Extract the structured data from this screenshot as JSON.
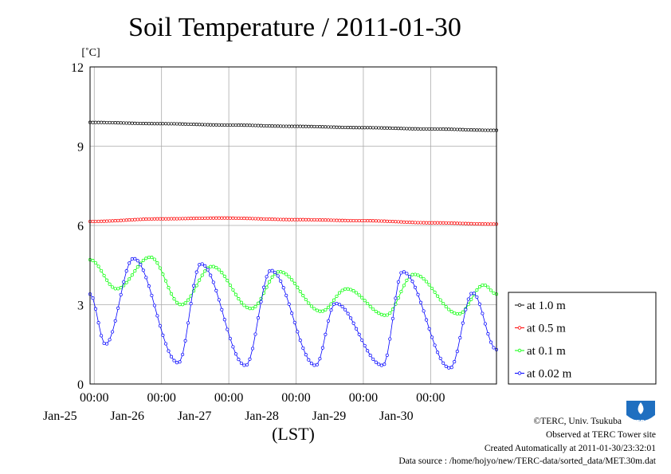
{
  "title": "Soil Temperature / 2011-01-30",
  "footer": {
    "copyright": "©TERC, Univ. Tsukuba",
    "site": "Observed at TERC Tower site",
    "created": "Created Automatically at 2011-01-30/23:32:01",
    "source": "Data source : /home/hojyo/new/TERC-data/sorted_data/MET.30m.dat"
  },
  "logo_text": "TERC",
  "chart_data": {
    "type": "line",
    "title": "Soil Temperature / 2011-01-30",
    "ylabel": "[˚C]",
    "xlabel": "(LST)",
    "ylim": [
      0,
      12
    ],
    "yticks": [
      "0",
      "3",
      "6",
      "9",
      "12"
    ],
    "xlim": [
      "2011-01-24 22:30",
      "2011-01-30 23:30"
    ],
    "xticks": [
      {
        "time": "00:00",
        "date": "Jan-25"
      },
      {
        "time": "00:00",
        "date": "Jan-26"
      },
      {
        "time": "00:00",
        "date": "Jan-27"
      },
      {
        "time": "00:00",
        "date": "Jan-28"
      },
      {
        "time": "00:00",
        "date": "Jan-29"
      },
      {
        "time": "00:00",
        "date": "Jan-30"
      }
    ],
    "grid": true,
    "legend": "outside-right",
    "x_unit_note": "values every 1 hour starting 2011-01-24 22:30; x listed for knots",
    "series": [
      {
        "name": "at 1.0 m",
        "color": "#000000",
        "points": [
          [
            "2011-01-24 22:30",
            9.9
          ],
          [
            "2011-01-26 00:00",
            9.85
          ],
          [
            "2011-01-27 00:00",
            9.8
          ],
          [
            "2011-01-28 00:00",
            9.75
          ],
          [
            "2011-01-29 00:00",
            9.7
          ],
          [
            "2011-01-30 00:00",
            9.65
          ],
          [
            "2011-01-30 23:30",
            9.6
          ]
        ]
      },
      {
        "name": "at 0.5 m",
        "color": "#ff0000",
        "points": [
          [
            "2011-01-24 22:30",
            6.15
          ],
          [
            "2011-01-26 00:00",
            6.25
          ],
          [
            "2011-01-26 22:00",
            6.28
          ],
          [
            "2011-01-28 00:00",
            6.22
          ],
          [
            "2011-01-29 00:00",
            6.18
          ],
          [
            "2011-01-30 00:00",
            6.1
          ],
          [
            "2011-01-30 23:30",
            6.05
          ]
        ]
      },
      {
        "name": "at 0.1 m",
        "color": "#00ff00",
        "points": [
          [
            "2011-01-24 22:30",
            4.7
          ],
          [
            "2011-01-25 08:00",
            3.6
          ],
          [
            "2011-01-25 20:00",
            4.8
          ],
          [
            "2011-01-26 07:00",
            3.0
          ],
          [
            "2011-01-26 18:00",
            4.45
          ],
          [
            "2011-01-27 08:00",
            2.85
          ],
          [
            "2011-01-27 18:00",
            4.25
          ],
          [
            "2011-01-28 09:00",
            2.75
          ],
          [
            "2011-01-28 18:00",
            3.6
          ],
          [
            "2011-01-29 08:00",
            2.6
          ],
          [
            "2011-01-29 18:00",
            4.15
          ],
          [
            "2011-01-30 10:00",
            2.65
          ],
          [
            "2011-01-30 19:00",
            3.75
          ],
          [
            "2011-01-30 23:30",
            3.4
          ]
        ]
      },
      {
        "name": "at 0.02 m",
        "color": "#0000ff",
        "points": [
          [
            "2011-01-24 22:30",
            3.4
          ],
          [
            "2011-01-25 04:00",
            1.5
          ],
          [
            "2011-01-25 14:00",
            4.75
          ],
          [
            "2011-01-26 06:00",
            0.8
          ],
          [
            "2011-01-26 14:00",
            4.55
          ],
          [
            "2011-01-27 06:00",
            0.7
          ],
          [
            "2011-01-27 15:00",
            4.3
          ],
          [
            "2011-01-28 07:00",
            0.7
          ],
          [
            "2011-01-28 14:00",
            3.05
          ],
          [
            "2011-01-29 07:00",
            0.7
          ],
          [
            "2011-01-29 14:00",
            4.25
          ],
          [
            "2011-01-30 07:00",
            0.6
          ],
          [
            "2011-01-30 15:00",
            3.45
          ],
          [
            "2011-01-30 23:30",
            1.3
          ]
        ]
      }
    ]
  }
}
